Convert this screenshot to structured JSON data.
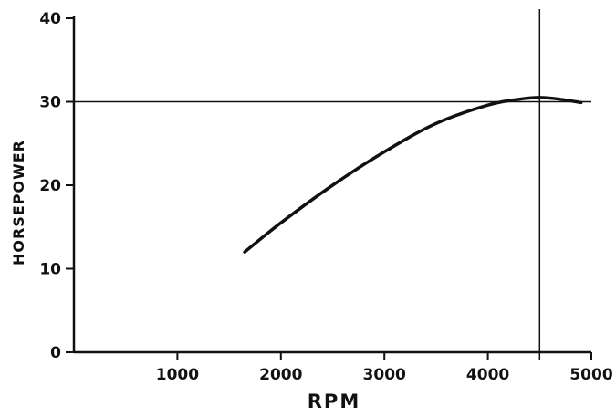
{
  "chart_data": {
    "type": "line",
    "title": "",
    "xlabel": "RPM",
    "ylabel": "HORSEPOWER",
    "xlim": [
      0,
      5000
    ],
    "ylim": [
      0,
      40
    ],
    "x_ticks": [
      1000,
      2000,
      3000,
      4000,
      5000
    ],
    "x_tick_labels": [
      "1000",
      "2000",
      "3000",
      "4000",
      "5000"
    ],
    "y_ticks": [
      0,
      10,
      20,
      30,
      40
    ],
    "y_tick_labels": [
      "0",
      "10",
      "20",
      "30",
      "40"
    ],
    "grid": false,
    "series": [
      {
        "x": [
          1650,
          2000,
          2500,
          3000,
          3500,
          4000,
          4300,
          4500,
          4700,
          4900
        ],
        "y": [
          12,
          15.5,
          20,
          24,
          27.4,
          29.6,
          30.3,
          30.5,
          30.3,
          29.9
        ]
      }
    ],
    "reference_lines": {
      "horizontal_y": 30,
      "vertical_x": 4500
    }
  }
}
